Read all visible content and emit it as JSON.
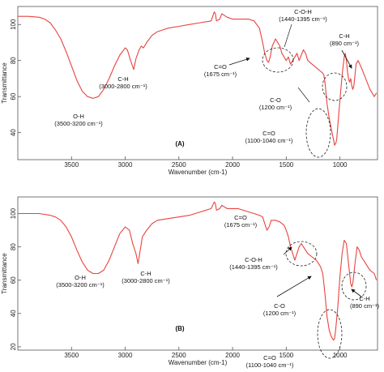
{
  "colors": {
    "spectrum": "#e8433f",
    "axis": "#555555",
    "annotation": "#111111"
  },
  "chart_data": [
    {
      "type": "line",
      "panel_label": "(A)",
      "xlabel": "Wavenumber (cm-1)",
      "ylabel": "Transmittance",
      "xlim": [
        4000,
        650
      ],
      "ylim": [
        25,
        110
      ],
      "x_reversed": true,
      "xticks": [
        3500,
        3000,
        2500,
        2000,
        1500,
        1000
      ],
      "yticks": [
        40,
        60,
        80,
        100
      ],
      "grid": false,
      "legend": "none",
      "series": [
        {
          "x": [
            4000,
            3900,
            3800,
            3750,
            3700,
            3650,
            3600,
            3550,
            3500,
            3450,
            3400,
            3350,
            3300,
            3250,
            3200,
            3150,
            3100,
            3050,
            3000,
            2980,
            2950,
            2920,
            2900,
            2870,
            2850,
            2830,
            2800,
            2750,
            2700,
            2650,
            2600,
            2500,
            2400,
            2300,
            2200,
            2170,
            2160,
            2150,
            2120,
            2100,
            2050,
            2000,
            1950,
            1900,
            1850,
            1800,
            1750,
            1720,
            1700,
            1680,
            1665,
            1650,
            1630,
            1600,
            1560,
            1540,
            1500,
            1480,
            1460,
            1440,
            1420,
            1400,
            1380,
            1360,
            1340,
            1320,
            1300,
            1260,
            1220,
            1200,
            1180,
            1160,
            1150,
            1140,
            1130,
            1120,
            1100,
            1080,
            1060,
            1050,
            1040,
            1030,
            1020,
            1000,
            980,
            960,
            950,
            940,
            930,
            920,
            910,
            900,
            890,
            880,
            870,
            860,
            850,
            830,
            800,
            760,
            720,
            680,
            660
          ],
          "y": [
            104.5,
            104.5,
            104,
            103,
            101,
            97,
            92,
            85,
            77,
            69,
            63,
            60,
            59,
            60,
            64,
            70,
            77,
            83,
            87,
            86,
            80,
            75,
            81,
            86,
            88,
            87,
            90,
            94,
            96,
            97,
            98,
            99,
            100,
            101,
            102,
            107,
            106,
            102,
            103,
            106,
            104,
            103,
            103,
            103,
            103,
            102,
            98,
            90,
            84,
            80,
            79,
            82,
            88,
            92,
            88,
            84,
            80,
            82,
            78,
            80,
            82,
            84,
            80,
            83,
            86,
            84,
            80,
            78,
            76,
            75,
            74,
            73,
            72,
            68,
            62,
            56,
            48,
            42,
            36,
            33,
            34,
            36,
            44,
            58,
            72,
            82,
            84,
            80,
            74,
            70,
            68,
            70,
            66,
            64,
            66,
            72,
            78,
            80,
            76,
            70,
            64,
            60,
            62
          ]
        }
      ],
      "annotations": [
        {
          "lines": [
            "O-H",
            "(3500-3200 cm⁻¹)"
          ]
        },
        {
          "lines": [
            "C-H",
            "(3000-2800 cm⁻¹)"
          ]
        },
        {
          "lines": [
            "C=O",
            "(1675 cm⁻¹)"
          ]
        },
        {
          "lines": [
            "C-O-H",
            "(1440-1395 cm⁻¹)"
          ]
        },
        {
          "lines": [
            "C-O",
            "(1200 cm⁻¹)"
          ]
        },
        {
          "lines": [
            "C-H",
            "(890 cm⁻¹)"
          ]
        },
        {
          "lines": [
            "C=O",
            "(1100-1040 cm⁻¹)"
          ]
        }
      ]
    },
    {
      "type": "line",
      "panel_label": "(B)",
      "xlabel": "Wavenumber (cm-1)",
      "ylabel": "Transmittance",
      "xlim": [
        4000,
        650
      ],
      "ylim": [
        18,
        110
      ],
      "x_reversed": true,
      "xticks": [
        3500,
        3000,
        2500,
        2000,
        1500,
        1000
      ],
      "yticks": [
        20,
        40,
        60,
        80,
        100
      ],
      "grid": false,
      "legend": "none",
      "series": [
        {
          "x": [
            4000,
            3900,
            3800,
            3700,
            3650,
            3600,
            3550,
            3500,
            3450,
            3400,
            3350,
            3300,
            3250,
            3200,
            3150,
            3100,
            3050,
            3000,
            2960,
            2930,
            2900,
            2880,
            2860,
            2840,
            2800,
            2750,
            2700,
            2600,
            2500,
            2400,
            2300,
            2200,
            2170,
            2160,
            2150,
            2120,
            2100,
            2050,
            2000,
            1950,
            1900,
            1850,
            1800,
            1750,
            1720,
            1700,
            1680,
            1660,
            1640,
            1600,
            1560,
            1520,
            1500,
            1480,
            1460,
            1440,
            1420,
            1400,
            1380,
            1360,
            1340,
            1300,
            1260,
            1220,
            1200,
            1180,
            1160,
            1140,
            1120,
            1100,
            1080,
            1060,
            1050,
            1040,
            1020,
            1000,
            980,
            960,
            940,
            920,
            900,
            890,
            880,
            860,
            840,
            820,
            800,
            760,
            720,
            680,
            660
          ],
          "y": [
            100,
            100,
            100,
            99,
            98,
            96,
            92,
            86,
            78,
            71,
            66,
            64,
            64,
            66,
            72,
            80,
            88,
            92,
            90,
            82,
            76,
            70,
            78,
            86,
            90,
            94,
            96,
            97,
            98,
            99,
            101,
            103,
            107,
            106,
            102,
            103,
            105,
            103,
            103,
            103,
            102,
            101,
            100,
            99,
            98,
            94,
            90,
            92,
            96,
            96,
            95,
            93,
            90,
            86,
            80,
            76,
            72,
            76,
            80,
            82,
            80,
            76,
            74,
            72,
            70,
            68,
            64,
            52,
            38,
            30,
            26,
            24,
            25,
            30,
            44,
            62,
            76,
            84,
            82,
            70,
            58,
            56,
            58,
            70,
            80,
            78,
            74,
            70,
            66,
            64,
            60
          ]
        }
      ],
      "annotations": [
        {
          "lines": [
            "O-H",
            "(3500-3200 cm⁻¹)"
          ]
        },
        {
          "lines": [
            "C-H",
            "(3000-2800 cm⁻¹)"
          ]
        },
        {
          "lines": [
            "C=O",
            "(1675 cm⁻¹)"
          ]
        },
        {
          "lines": [
            "C-O-H",
            "(1440-1395 cm⁻¹)"
          ]
        },
        {
          "lines": [
            "C-O",
            "(1200 cm⁻¹)"
          ]
        },
        {
          "lines": [
            "C-H",
            "(890 cm⁻¹)"
          ]
        },
        {
          "lines": [
            "C=O",
            "(1100-1040 cm⁻¹)"
          ]
        }
      ]
    }
  ]
}
